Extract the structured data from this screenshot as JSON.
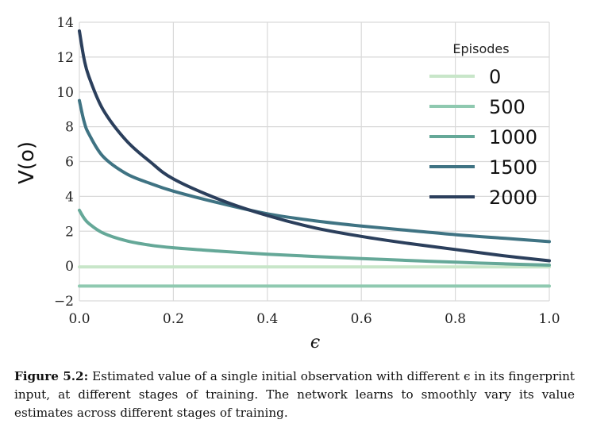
{
  "chart_data": {
    "type": "line",
    "xlabel": "ϵ",
    "ylabel": "V(o)",
    "xlim": [
      0.0,
      1.0
    ],
    "ylim": [
      -2,
      14
    ],
    "xticks": [
      "0.0",
      "0.2",
      "0.4",
      "0.6",
      "0.8",
      "1.0"
    ],
    "yticks": [
      "−2",
      "0",
      "2",
      "4",
      "6",
      "8",
      "10",
      "12",
      "14"
    ],
    "grid": true,
    "legend": {
      "title": "Episodes",
      "placement": "top-right"
    },
    "x": [
      0.0,
      0.01,
      0.02,
      0.05,
      0.1,
      0.15,
      0.2,
      0.3,
      0.4,
      0.5,
      0.6,
      0.7,
      0.8,
      0.9,
      1.0
    ],
    "series": [
      {
        "name": "0",
        "color": "#c8e6c9",
        "values": [
          -0.05,
          -0.05,
          -0.05,
          -0.05,
          -0.05,
          -0.05,
          -0.05,
          -0.05,
          -0.05,
          -0.05,
          -0.05,
          -0.05,
          -0.05,
          -0.05,
          -0.05
        ]
      },
      {
        "name": "500",
        "color": "#8fc9b0",
        "values": [
          -1.15,
          -1.15,
          -1.15,
          -1.15,
          -1.15,
          -1.15,
          -1.15,
          -1.15,
          -1.15,
          -1.15,
          -1.15,
          -1.15,
          -1.15,
          -1.15,
          -1.15
        ]
      },
      {
        "name": "1000",
        "color": "#65a898",
        "values": [
          3.2,
          2.75,
          2.45,
          1.9,
          1.45,
          1.2,
          1.05,
          0.85,
          0.68,
          0.55,
          0.43,
          0.32,
          0.22,
          0.13,
          0.05
        ]
      },
      {
        "name": "1500",
        "color": "#3f7383",
        "values": [
          9.5,
          8.3,
          7.6,
          6.3,
          5.3,
          4.75,
          4.3,
          3.6,
          3.0,
          2.6,
          2.3,
          2.05,
          1.8,
          1.6,
          1.4
        ]
      },
      {
        "name": "2000",
        "color": "#2b3f5c",
        "values": [
          13.5,
          11.9,
          10.9,
          9.0,
          7.2,
          6.0,
          5.0,
          3.8,
          2.9,
          2.2,
          1.7,
          1.3,
          0.95,
          0.6,
          0.3
        ]
      }
    ]
  },
  "caption": {
    "label": "Figure 5.2:",
    "text": " Estimated value of a single initial observation with different ϵ in its fingerprint input, at different stages of training. The network learns to smoothly vary its value estimates across different stages of training."
  }
}
